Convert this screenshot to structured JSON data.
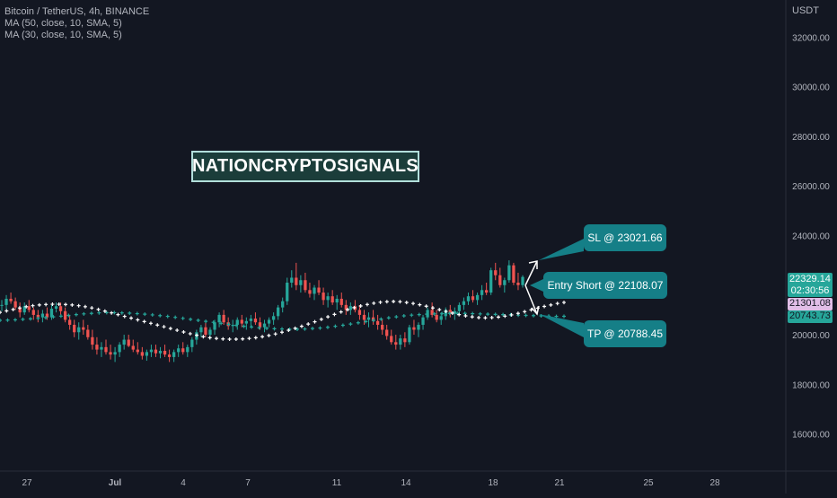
{
  "legend": {
    "title": "Bitcoin / TetherUS, 4h, BINANCE",
    "ma1": "MA (50, close, 10, SMA, 5)",
    "ma2": "MA (30, close, 10, SMA, 5)"
  },
  "watermark": "NATIONCRYPTOSIGNALS",
  "callouts": {
    "sl": "SL @ 23021.66",
    "entry": "Entry Short @ 22108.07",
    "tp": "TP @ 20788.45"
  },
  "price_tags": {
    "last": "22329.14",
    "countdown": "02:30:56",
    "ma_white": "21301.08",
    "ma_green": "20743.73"
  },
  "colors": {
    "background": "#131722",
    "up": "#26a69a",
    "down": "#ef5350",
    "callout": "#157f87",
    "ma_white": "#ffffff",
    "ma_green": "#26a69a"
  },
  "chart_data": {
    "type": "candlestick",
    "symbol": "Bitcoin / TetherUS",
    "interval": "4h",
    "exchange": "BINANCE",
    "y_unit": "USDT",
    "ylim": [
      14500,
      33500
    ],
    "y_ticks": [
      32000,
      30000,
      28000,
      26000,
      24000,
      22000,
      20000,
      18000,
      16000
    ],
    "y_tick_labels": [
      "32000.00",
      "30000.00",
      "28000.00",
      "26000.00",
      "24000.00",
      "22000.00",
      "20000.00",
      "18000.00",
      "16000.00"
    ],
    "x_ticks": [
      "27",
      "Jul",
      "4",
      "7",
      "11",
      "14",
      "18",
      "21",
      "25",
      "28"
    ],
    "candles": [
      [
        21170,
        21400,
        20950,
        21200
      ],
      [
        21200,
        21600,
        21000,
        21450
      ],
      [
        21450,
        21700,
        21250,
        21350
      ],
      [
        21350,
        21500,
        21000,
        21100
      ],
      [
        21100,
        21300,
        20700,
        20900
      ],
      [
        20900,
        21300,
        20800,
        21150
      ],
      [
        21150,
        21400,
        20900,
        21000
      ],
      [
        21000,
        21100,
        20600,
        20800
      ],
      [
        20800,
        21000,
        20500,
        20700
      ],
      [
        20700,
        21000,
        20500,
        20850
      ],
      [
        20850,
        21100,
        20600,
        20700
      ],
      [
        20700,
        21200,
        20600,
        21050
      ],
      [
        21050,
        21300,
        20900,
        21150
      ],
      [
        21150,
        21300,
        20800,
        20950
      ],
      [
        20950,
        21100,
        20500,
        20600
      ],
      [
        20600,
        20800,
        20200,
        20400
      ],
      [
        20400,
        20600,
        19900,
        20100
      ],
      [
        20100,
        20500,
        19800,
        20300
      ],
      [
        20300,
        20600,
        20000,
        20200
      ],
      [
        20200,
        20400,
        19800,
        19900
      ],
      [
        19900,
        20200,
        19400,
        19600
      ],
      [
        19600,
        19900,
        19200,
        19400
      ],
      [
        19400,
        19700,
        19100,
        19500
      ],
      [
        19500,
        19800,
        19200,
        19300
      ],
      [
        19300,
        19600,
        19000,
        19200
      ],
      [
        19200,
        19500,
        18900,
        19300
      ],
      [
        19300,
        19700,
        19100,
        19600
      ],
      [
        19600,
        20000,
        19400,
        19800
      ],
      [
        19800,
        20000,
        19500,
        19550
      ],
      [
        19550,
        19800,
        19300,
        19400
      ],
      [
        19400,
        19700,
        19200,
        19300
      ],
      [
        19300,
        19500,
        19000,
        19150
      ],
      [
        19150,
        19400,
        18950,
        19300
      ],
      [
        19300,
        19600,
        19100,
        19400
      ],
      [
        19400,
        19600,
        19100,
        19250
      ],
      [
        19250,
        19500,
        19050,
        19350
      ],
      [
        19350,
        19600,
        19100,
        19200
      ],
      [
        19200,
        19400,
        18900,
        19100
      ],
      [
        19100,
        19400,
        18900,
        19300
      ],
      [
        19300,
        19600,
        19100,
        19450
      ],
      [
        19450,
        19700,
        19200,
        19300
      ],
      [
        19300,
        19600,
        19100,
        19500
      ],
      [
        19500,
        19900,
        19300,
        19800
      ],
      [
        19800,
        20200,
        19600,
        20100
      ],
      [
        20100,
        20400,
        19900,
        20300
      ],
      [
        20300,
        20500,
        19900,
        20000
      ],
      [
        20000,
        20300,
        19800,
        20200
      ],
      [
        20200,
        20600,
        20000,
        20500
      ],
      [
        20500,
        20900,
        20300,
        20800
      ],
      [
        20800,
        21000,
        20400,
        20500
      ],
      [
        20500,
        20700,
        20200,
        20350
      ],
      [
        20350,
        20600,
        20100,
        20400
      ],
      [
        20400,
        20700,
        20200,
        20600
      ],
      [
        20600,
        20800,
        20300,
        20450
      ],
      [
        20450,
        20700,
        20200,
        20550
      ],
      [
        20550,
        20800,
        20300,
        20650
      ],
      [
        20650,
        20900,
        20400,
        20500
      ],
      [
        20500,
        20700,
        20200,
        20300
      ],
      [
        20300,
        20600,
        20100,
        20450
      ],
      [
        20450,
        20700,
        20300,
        20600
      ],
      [
        20600,
        20900,
        20400,
        20750
      ],
      [
        20750,
        21200,
        20600,
        21100
      ],
      [
        21100,
        21500,
        20900,
        21350
      ],
      [
        21350,
        22300,
        21200,
        22100
      ],
      [
        22100,
        22600,
        21900,
        22300
      ],
      [
        22300,
        22900,
        21800,
        22000
      ],
      [
        22000,
        22400,
        21700,
        22200
      ],
      [
        22200,
        22500,
        21700,
        21800
      ],
      [
        21800,
        22100,
        21500,
        21650
      ],
      [
        21650,
        22000,
        21400,
        21900
      ],
      [
        21900,
        22200,
        21600,
        21700
      ],
      [
        21700,
        21900,
        21200,
        21400
      ],
      [
        21400,
        21700,
        21100,
        21550
      ],
      [
        21550,
        21800,
        21200,
        21300
      ],
      [
        21300,
        21600,
        21000,
        21450
      ],
      [
        21450,
        21700,
        21100,
        21200
      ],
      [
        21200,
        21400,
        20800,
        21000
      ],
      [
        21000,
        21300,
        20800,
        21150
      ],
      [
        21150,
        21400,
        20900,
        21000
      ],
      [
        21000,
        21200,
        20600,
        20800
      ],
      [
        20800,
        21000,
        20400,
        20600
      ],
      [
        20600,
        20900,
        20300,
        20700
      ],
      [
        20700,
        21000,
        20400,
        20550
      ],
      [
        20550,
        20800,
        20200,
        20400
      ],
      [
        20400,
        20600,
        20000,
        20200
      ],
      [
        20200,
        20400,
        19800,
        19950
      ],
      [
        19950,
        20200,
        19600,
        19700
      ],
      [
        19700,
        20000,
        19400,
        19600
      ],
      [
        19600,
        20000,
        19400,
        19850
      ],
      [
        19850,
        20100,
        19500,
        19700
      ],
      [
        19700,
        20400,
        19600,
        20300
      ],
      [
        20300,
        20600,
        20000,
        20200
      ],
      [
        20200,
        20500,
        19900,
        20400
      ],
      [
        20400,
        20800,
        20200,
        20700
      ],
      [
        20700,
        21100,
        20600,
        21000
      ],
      [
        21000,
        21300,
        20700,
        20800
      ],
      [
        20800,
        21000,
        20500,
        20600
      ],
      [
        20600,
        20900,
        20400,
        20750
      ],
      [
        20750,
        21100,
        20600,
        21000
      ],
      [
        21000,
        21200,
        20700,
        20850
      ],
      [
        20850,
        21100,
        20600,
        20950
      ],
      [
        20950,
        21300,
        20800,
        21200
      ],
      [
        21200,
        21500,
        21000,
        21350
      ],
      [
        21350,
        21700,
        21200,
        21550
      ],
      [
        21550,
        21800,
        21300,
        21400
      ],
      [
        21400,
        21700,
        21200,
        21600
      ],
      [
        21600,
        22000,
        21400,
        21800
      ],
      [
        21800,
        22100,
        21600,
        21700
      ],
      [
        21700,
        22700,
        21600,
        22600
      ],
      [
        22600,
        22900,
        22200,
        22400
      ],
      [
        22400,
        22700,
        21900,
        22000
      ],
      [
        22000,
        22300,
        21700,
        22200
      ],
      [
        22200,
        23000,
        22100,
        22800
      ],
      [
        22800,
        22900,
        22000,
        22100
      ],
      [
        22100,
        22500,
        21800,
        22000
      ],
      [
        22000,
        22400,
        21900,
        22329.14
      ]
    ],
    "ma_white": [
      20900,
      20960,
      21020,
      21080,
      21130,
      21170,
      21200,
      21220,
      21230,
      21230,
      21220,
      21200,
      21170,
      21130,
      21080,
      21020,
      20950,
      20880,
      20810,
      20740,
      20670,
      20600,
      20530,
      20460,
      20390,
      20320,
      20250,
      20180,
      20110,
      20040,
      19980,
      19920,
      19880,
      19850,
      19830,
      19820,
      19820,
      19830,
      19850,
      19880,
      19920,
      19970,
      20030,
      20100,
      20180,
      20260,
      20340,
      20430,
      20520,
      20620,
      20720,
      20820,
      20920,
      21010,
      21090,
      21160,
      21220,
      21270,
      21310,
      21330,
      21340,
      21330,
      21300,
      21260,
      21210,
      21150,
      21080,
      21010,
      20940,
      20870,
      20810,
      20760,
      20720,
      20690,
      20680,
      20690,
      20710,
      20750,
      20800,
      20860,
      20930,
      21000,
      21070,
      21140,
      21200,
      21260,
      21301.08
    ],
    "ma_green": [
      20580,
      20590,
      20600,
      20620,
      20640,
      20660,
      20690,
      20720,
      20750,
      20780,
      20810,
      20840,
      20860,
      20880,
      20890,
      20890,
      20880,
      20870,
      20850,
      20830,
      20800,
      20770,
      20740,
      20700,
      20660,
      20620,
      20580,
      20540,
      20500,
      20460,
      20420,
      20380,
      20340,
      20310,
      20280,
      20260,
      20240,
      20230,
      20220,
      20220,
      20230,
      20250,
      20270,
      20300,
      20340,
      20380,
      20430,
      20480,
      20530,
      20580,
      20630,
      20680,
      20720,
      20760,
      20790,
      20810,
      20830,
      20840,
      20850,
      20860,
      20860,
      20860,
      20850,
      20840,
      20830,
      20820,
      20810,
      20800,
      20790,
      20780,
      20770,
      20760,
      20750,
      20740,
      20743.73
    ],
    "levels": {
      "stop_loss": 23021.66,
      "entry_short": 22108.07,
      "take_profit": 20788.45
    }
  }
}
